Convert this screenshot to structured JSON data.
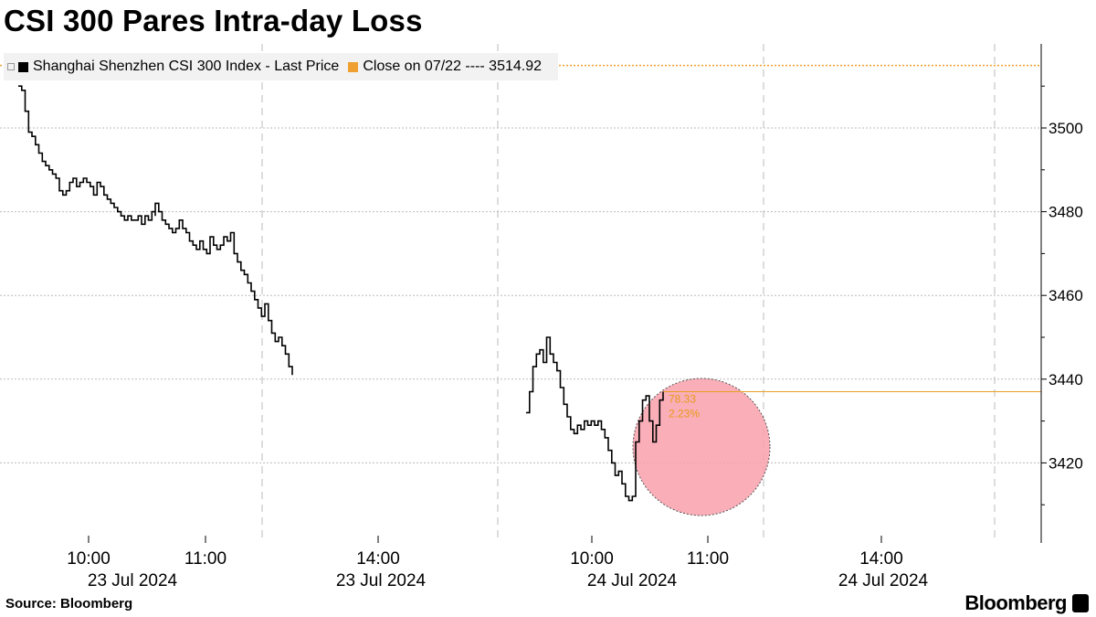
{
  "title": "CSI 300 Pares Intra-day Loss",
  "legend": {
    "series_label": "Shanghai Shenzhen CSI 300 Index - Last Price",
    "close_label": "Close on 07/22 ---- 3514.92",
    "series_color": "#000000",
    "close_color": "#f0a030"
  },
  "source": "Source: Bloomberg",
  "brand": "Bloomberg",
  "chart_data": {
    "type": "line",
    "title": "CSI 300 Pares Intra-day Loss",
    "xlabel": "",
    "ylabel": "",
    "y_ticks": [
      3420,
      3440,
      3460,
      3480,
      3500
    ],
    "ylim": [
      3400,
      3530
    ],
    "x_axis_labels": [
      {
        "time": "10:00",
        "date": "23 Jul 2024"
      },
      {
        "time": "11:00",
        "date": ""
      },
      {
        "time": "14:00",
        "date": "23 Jul 2024"
      },
      {
        "time": "10:00",
        "date": "24 Jul 2024"
      },
      {
        "time": "11:00",
        "date": ""
      },
      {
        "time": "14:00",
        "date": "24 Jul 2024"
      }
    ],
    "reference_line": {
      "name": "Close on 07/22",
      "value": 3514.92
    },
    "change_annotation": {
      "points": "78.33",
      "percent": "2.23%"
    },
    "series": [
      {
        "name": "Shanghai Shenzhen CSI 300 Index - Last Price",
        "sessions": [
          {
            "date": "23 Jul 2024",
            "points": [
              [
                "09:30",
                3510
              ],
              [
                "09:33",
                3509
              ],
              [
                "09:36",
                3504
              ],
              [
                "09:39",
                3499
              ],
              [
                "09:42",
                3498
              ],
              [
                "09:45",
                3496
              ],
              [
                "09:48",
                3494
              ],
              [
                "09:51",
                3492
              ],
              [
                "09:54",
                3491
              ],
              [
                "09:57",
                3490
              ],
              [
                "10:00",
                3489
              ],
              [
                "10:03",
                3488
              ],
              [
                "10:06",
                3485
              ],
              [
                "10:09",
                3484
              ],
              [
                "10:12",
                3485
              ],
              [
                "10:15",
                3487
              ],
              [
                "10:18",
                3488
              ],
              [
                "10:21",
                3486
              ],
              [
                "10:24",
                3487
              ],
              [
                "10:27",
                3488
              ],
              [
                "10:30",
                3487
              ],
              [
                "10:33",
                3486
              ],
              [
                "10:36",
                3484
              ],
              [
                "10:39",
                3487
              ],
              [
                "10:42",
                3486
              ],
              [
                "10:45",
                3484
              ],
              [
                "10:48",
                3483
              ],
              [
                "10:51",
                3482
              ],
              [
                "10:54",
                3481
              ],
              [
                "10:57",
                3480
              ],
              [
                "11:00",
                3479
              ],
              [
                "11:03",
                3478
              ],
              [
                "11:06",
                3479
              ],
              [
                "11:09",
                3478
              ],
              [
                "11:12",
                3478
              ],
              [
                "11:15",
                3479
              ],
              [
                "11:18",
                3477
              ],
              [
                "11:21",
                3479
              ],
              [
                "11:24",
                3478
              ],
              [
                "11:27",
                3480
              ],
              [
                "11:30",
                3479
              ],
              [
                "13:00",
                3482
              ],
              [
                "13:03",
                3480
              ],
              [
                "13:06",
                3478
              ],
              [
                "13:09",
                3477
              ],
              [
                "13:12",
                3476
              ],
              [
                "13:15",
                3475
              ],
              [
                "13:18",
                3476
              ],
              [
                "13:21",
                3478
              ],
              [
                "13:24",
                3476
              ],
              [
                "13:27",
                3475
              ],
              [
                "13:30",
                3473
              ],
              [
                "13:33",
                3472
              ],
              [
                "13:36",
                3471
              ],
              [
                "13:39",
                3473
              ],
              [
                "13:42",
                3471
              ],
              [
                "13:45",
                3470
              ],
              [
                "13:48",
                3474
              ],
              [
                "13:51",
                3472
              ],
              [
                "13:54",
                3471
              ],
              [
                "13:57",
                3472
              ],
              [
                "14:00",
                3474
              ],
              [
                "14:03",
                3473
              ],
              [
                "14:06",
                3475
              ],
              [
                "14:09",
                3470
              ],
              [
                "14:12",
                3468
              ],
              [
                "14:15",
                3466
              ],
              [
                "14:18",
                3465
              ],
              [
                "14:21",
                3463
              ],
              [
                "14:24",
                3461
              ],
              [
                "14:27",
                3459
              ],
              [
                "14:30",
                3457
              ],
              [
                "14:33",
                3455
              ],
              [
                "14:36",
                3458
              ],
              [
                "14:39",
                3454
              ],
              [
                "14:42",
                3451
              ],
              [
                "14:45",
                3449
              ],
              [
                "14:48",
                3450
              ],
              [
                "14:51",
                3448
              ],
              [
                "14:54",
                3446
              ],
              [
                "14:57",
                3443
              ],
              [
                "15:00",
                3441
              ]
            ]
          },
          {
            "date": "24 Jul 2024",
            "points": [
              [
                "09:30",
                3432
              ],
              [
                "09:33",
                3437
              ],
              [
                "09:36",
                3443
              ],
              [
                "09:39",
                3446
              ],
              [
                "09:42",
                3447
              ],
              [
                "09:45",
                3444
              ],
              [
                "09:48",
                3450
              ],
              [
                "09:51",
                3446
              ],
              [
                "09:54",
                3444
              ],
              [
                "09:57",
                3442
              ],
              [
                "10:00",
                3438
              ],
              [
                "10:03",
                3434
              ],
              [
                "10:06",
                3431
              ],
              [
                "10:09",
                3428
              ],
              [
                "10:12",
                3427
              ],
              [
                "10:15",
                3429
              ],
              [
                "10:18",
                3428
              ],
              [
                "10:21",
                3430
              ],
              [
                "10:24",
                3429
              ],
              [
                "10:27",
                3430
              ],
              [
                "10:30",
                3429
              ],
              [
                "10:33",
                3430
              ],
              [
                "10:36",
                3428
              ],
              [
                "10:39",
                3426
              ],
              [
                "10:42",
                3423
              ],
              [
                "10:45",
                3420
              ],
              [
                "10:48",
                3417
              ],
              [
                "10:51",
                3418
              ],
              [
                "10:54",
                3415
              ],
              [
                "10:57",
                3412
              ],
              [
                "11:00",
                3411
              ],
              [
                "11:03",
                3412
              ],
              [
                "11:06",
                3425
              ],
              [
                "11:09",
                3430
              ],
              [
                "11:12",
                3435
              ],
              [
                "11:15",
                3436
              ],
              [
                "11:18",
                3430
              ],
              [
                "11:21",
                3425
              ],
              [
                "11:24",
                3429
              ],
              [
                "11:27",
                3435
              ],
              [
                "11:30",
                3437
              ]
            ]
          }
        ]
      }
    ]
  }
}
